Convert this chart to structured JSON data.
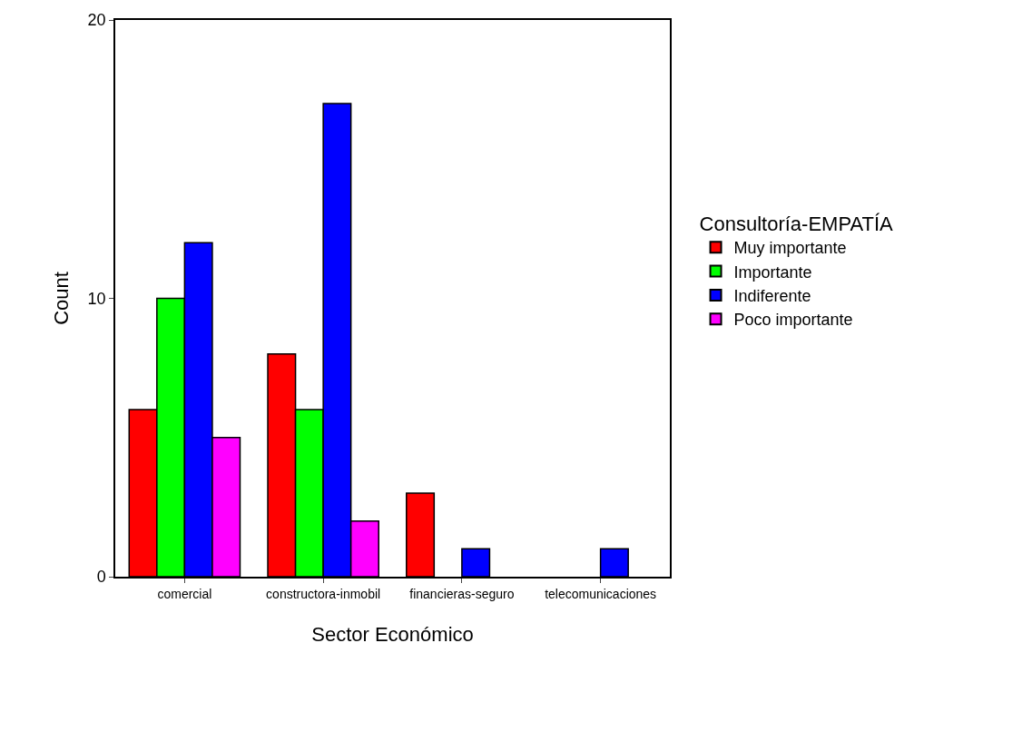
{
  "chart_data": {
    "type": "bar",
    "xlabel": "Sector Económico",
    "ylabel": "Count",
    "legend_title": "Consultoría-EMPATÍA",
    "categories": [
      "comercial",
      "constructora-inmobil",
      "financieras-seguro",
      "telecomunicaciones"
    ],
    "series": [
      {
        "name": "Muy importante",
        "color": "#ff0000",
        "values": [
          6,
          8,
          3,
          null
        ]
      },
      {
        "name": "Importante",
        "color": "#00ff00",
        "values": [
          10,
          6,
          null,
          null
        ]
      },
      {
        "name": "Indiferente",
        "color": "#0000ff",
        "values": [
          12,
          17,
          1,
          1
        ]
      },
      {
        "name": "Poco importante",
        "color": "#ff00ff",
        "values": [
          5,
          2,
          null,
          null
        ]
      }
    ],
    "ylim": [
      0,
      20
    ],
    "yticks": [
      0,
      10,
      20
    ],
    "legend": "right"
  }
}
